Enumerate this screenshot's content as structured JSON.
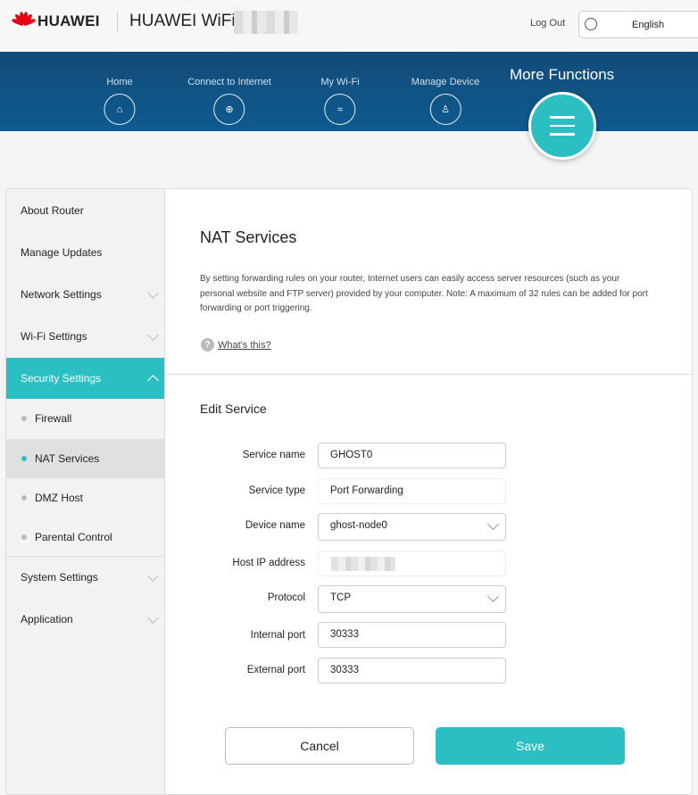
{
  "header": {
    "brand": "HUAWEI",
    "product": "HUAWEI WiFi",
    "logout": "Log Out",
    "language": "English"
  },
  "nav": {
    "items": [
      {
        "label": "Home",
        "icon": "home-icon"
      },
      {
        "label": "Connect to Internet",
        "icon": "globe-icon"
      },
      {
        "label": "My Wi-Fi",
        "icon": "wifi-icon"
      },
      {
        "label": "Manage Device",
        "icon": "user-icon"
      }
    ],
    "more": "More Functions"
  },
  "sidebar": {
    "items": [
      "About Router",
      "Manage Updates",
      "Network Settings",
      "Wi-Fi Settings",
      "Security Settings",
      "System Settings",
      "Application"
    ],
    "sub": [
      "Firewall",
      "NAT Services",
      "DMZ Host",
      "Parental Control"
    ]
  },
  "main": {
    "title": "NAT Services",
    "description": "By setting forwarding rules on your router, Internet users can easily access server resources (such as your personal website and FTP server) provided by your computer. Note: A maximum of 32 rules can be added for port forwarding or port triggering.",
    "help": "What's this?",
    "section": "Edit Service",
    "form": {
      "service_name_label": "Service name",
      "service_name": "GHOST0",
      "service_type_label": "Service type",
      "service_type": "Port Forwarding",
      "device_name_label": "Device name",
      "device_name": "ghost-node0",
      "host_ip_label": "Host IP address",
      "protocol_label": "Protocol",
      "protocol": "TCP",
      "internal_port_label": "Internal port",
      "internal_port": "30333",
      "external_port_label": "External port",
      "external_port": "30333"
    },
    "cancel": "Cancel",
    "save": "Save"
  },
  "colors": {
    "accent": "#2bbfc3",
    "nav": "#134b78",
    "brand": "#e60012"
  }
}
